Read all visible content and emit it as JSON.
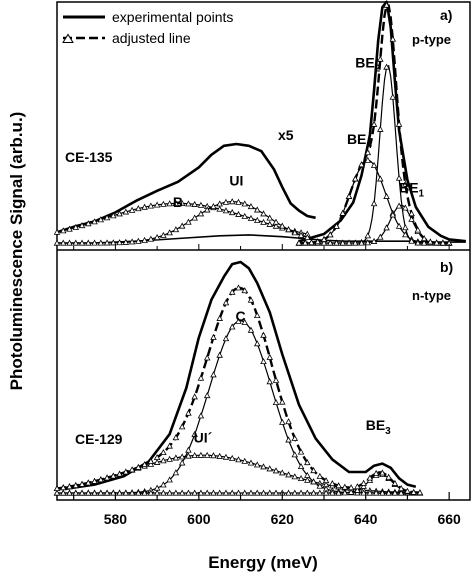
{
  "chart_data": {
    "type": "line",
    "xlabel": "Energy (meV)",
    "ylabel": "Photoluminescence Signal (arb.u.)",
    "xlim": [
      566,
      665
    ],
    "xticks": [
      580,
      600,
      620,
      640,
      660
    ],
    "legend": {
      "placement": "top-left",
      "entries": [
        {
          "label": "experimental points",
          "style": "solid"
        },
        {
          "label": "adjusted line",
          "style": "dashed-triangle"
        }
      ]
    },
    "panels": [
      {
        "id": "a",
        "tag": "a)",
        "type_label": "p-type",
        "sample": "CE-135",
        "scale_label": "x5",
        "series": [
          {
            "name": "experimental points",
            "role": "exp-low",
            "style": "solid",
            "x": [
              566,
              575,
              585,
              595,
              605,
              612,
              620,
              625,
              630,
              635,
              640,
              645,
              650,
              655,
              660,
              664
            ],
            "y": [
              0.0,
              0.0,
              0.02,
              0.05,
              0.08,
              0.09,
              0.07,
              0.05,
              0.03,
              0.02,
              0.02,
              0.02,
              0.02,
              0.01,
              0.01,
              0.01
            ]
          },
          {
            "name": "experimental points",
            "role": "exp-x5",
            "style": "solid",
            "x": [
              566,
              570,
              575,
              580,
              585,
              590,
              595,
              600,
              603,
              606,
              609,
              612,
              615,
              618,
              620,
              622,
              624,
              626,
              628
            ],
            "y": [
              0.12,
              0.18,
              0.24,
              0.34,
              0.47,
              0.58,
              0.68,
              0.84,
              0.98,
              1.08,
              1.1,
              1.08,
              1.02,
              0.82,
              0.62,
              0.44,
              0.36,
              0.3,
              0.28
            ]
          },
          {
            "name": "experimental points",
            "role": "exp-peak",
            "style": "solid",
            "x": [
              624,
              630,
              634,
              637,
              639,
              641,
              642,
              643,
              644,
              645,
              646,
              647,
              648,
              650,
              652,
              655,
              658,
              660,
              664
            ],
            "y": [
              0.02,
              0.1,
              0.25,
              0.45,
              0.75,
              1.2,
              1.7,
              2.25,
              2.62,
              2.68,
              2.4,
              1.8,
              1.25,
              0.7,
              0.4,
              0.18,
              0.08,
              0.04,
              0.02
            ]
          },
          {
            "name": "B",
            "role": "fit",
            "style": "dashed-triangle",
            "peak": 595,
            "width": 18,
            "amp": 0.44,
            "range": [
              566,
              626
            ]
          },
          {
            "name": "UI",
            "role": "fit",
            "style": "dashed-triangle",
            "peak": 608,
            "width": 9,
            "amp": 0.46,
            "range": [
              566,
              626
            ]
          },
          {
            "name": "BE4",
            "role": "fit",
            "style": "dashed-triangle",
            "peak": 640.5,
            "width": 4.2,
            "amp": 0.92,
            "range": [
              624,
              660
            ]
          },
          {
            "name": "BE2",
            "role": "fit",
            "style": "dashed-triangle",
            "peak": 645.3,
            "width": 1.9,
            "amp": 1.98,
            "range": [
              624,
              660
            ]
          },
          {
            "name": "BE1",
            "role": "fit",
            "style": "dashed-triangle",
            "peak": 648.5,
            "width": 2.6,
            "amp": 0.42,
            "range": [
              624,
              660
            ]
          },
          {
            "name": "adjusted line",
            "role": "fit-sum",
            "style": "dashed-triangle",
            "components": [
              "BE4",
              "BE2",
              "BE1"
            ],
            "range": [
              624,
              660
            ]
          }
        ],
        "annotations": [
          {
            "text": "B",
            "x": 595,
            "y": 0.4
          },
          {
            "text": "UI",
            "x": 609,
            "y": 0.64
          },
          {
            "text": "BE2",
            "x": 640.5,
            "y": 1.95
          },
          {
            "text": "BE4",
            "x": 638.5,
            "y": 1.1
          },
          {
            "text": "BE1",
            "x": 651,
            "y": 0.56
          }
        ]
      },
      {
        "id": "b",
        "tag": "b)",
        "type_label": "n-type",
        "sample": "CE-129",
        "series": [
          {
            "name": "experimental points",
            "role": "exp",
            "style": "solid",
            "x": [
              568,
              575,
              582,
              588,
              593,
              597,
              600,
              603,
              606,
              608,
              610,
              612,
              614,
              617,
              620,
              624,
              628,
              632,
              636,
              640,
              642,
              644,
              646,
              648,
              650,
              652
            ],
            "y": [
              0.02,
              0.04,
              0.08,
              0.15,
              0.28,
              0.5,
              0.74,
              0.92,
              1.03,
              1.09,
              1.1,
              1.07,
              1.0,
              0.86,
              0.66,
              0.42,
              0.26,
              0.16,
              0.1,
              0.1,
              0.13,
              0.14,
              0.12,
              0.07,
              0.04,
              0.03
            ]
          },
          {
            "name": "UI´",
            "role": "fit",
            "style": "dashed-triangle",
            "peak": 601,
            "width": 17,
            "amp": 0.18,
            "range": [
              566,
              653
            ]
          },
          {
            "name": "C",
            "role": "fit",
            "style": "dashed-triangle",
            "peak": 610,
            "width": 7.5,
            "amp": 0.82,
            "range": [
              566,
              653
            ]
          },
          {
            "name": "BE3",
            "role": "fit",
            "style": "dashed-triangle",
            "peak": 643.5,
            "width": 2.8,
            "amp": 0.09,
            "range": [
              566,
              653
            ]
          },
          {
            "name": "adjusted line",
            "role": "fit-sum",
            "style": "dashed-triangle",
            "components": [
              "UI´",
              "C",
              "BE3"
            ],
            "range": [
              566,
              653
            ]
          }
        ],
        "annotations": [
          {
            "text": "C",
            "x": 610,
            "y": 0.82
          },
          {
            "text": "UI´",
            "x": 601,
            "y": 0.24
          },
          {
            "text": "BE3",
            "x": 643,
            "y": 0.3
          }
        ]
      }
    ]
  }
}
